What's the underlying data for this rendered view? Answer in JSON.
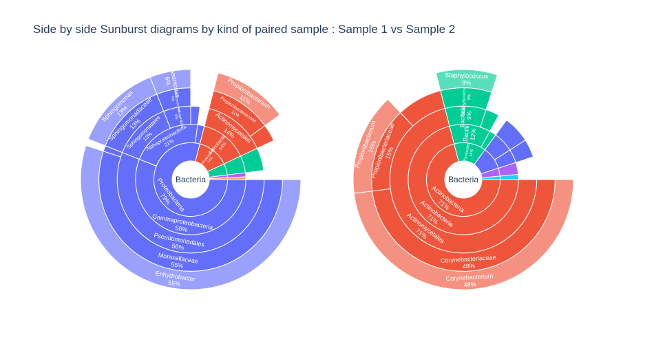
{
  "chart_data": {
    "title": "Side by side Sunburst diagrams by kind of paired sample : Sample 1 vs Sample 2",
    "type": "sunburst",
    "colors": {
      "Proteobacteria": "#636efa",
      "Actinobacteria": "#ef553b",
      "Firmicutes": "#00cc96",
      "Bacteroidetes": "#ab63fa",
      "Cyanobacteria": "#ffa15a",
      "Other": "#19d3f3"
    },
    "charts": [
      {
        "name": "Sample 1",
        "root": "Bacteria",
        "start_angle_deg": 0,
        "nodes": [
          {
            "label": "Proteobacteria",
            "value": 79,
            "percent": "79%",
            "phylum": "Proteobacteria",
            "children": [
              {
                "label": "Gammaproteobacteria",
                "value": 56,
                "percent": "56%",
                "phylum": "Proteobacteria",
                "children": [
                  {
                    "label": "Pseudomonadales",
                    "value": 56,
                    "percent": "56%",
                    "phylum": "Proteobacteria",
                    "children": [
                      {
                        "label": "Moraxellaceae",
                        "value": 55,
                        "percent": "55%",
                        "phylum": "Proteobacteria",
                        "children": [
                          {
                            "label": "Enhydrobacter",
                            "value": 55,
                            "percent": "55%",
                            "phylum": "Proteobacteria"
                          }
                        ]
                      },
                      {
                        "label": "",
                        "value": 1,
                        "phylum": "Proteobacteria"
                      }
                    ]
                  }
                ]
              },
              {
                "label": "Alphaproteobacteria",
                "value": 21,
                "percent": "21%",
                "phylum": "Proteobacteria",
                "children": [
                  {
                    "label": "Sphingomonadales",
                    "value": 13,
                    "percent": "13%",
                    "phylum": "Proteobacteria",
                    "children": [
                      {
                        "label": "Sphingomonadaceae",
                        "value": 13,
                        "percent": "13%",
                        "phylum": "Proteobacteria",
                        "children": [
                          {
                            "label": "Sphingomonas",
                            "value": 13,
                            "percent": "13%",
                            "phylum": "Proteobacteria"
                          }
                        ]
                      }
                    ]
                  },
                  {
                    "label": "Rhodospirillales",
                    "value": 6,
                    "percent": "6%",
                    "phylum": "Proteobacteria",
                    "children": [
                      {
                        "label": "Acetobacteraceae",
                        "value": 6,
                        "percent": "6%",
                        "phylum": "Proteobacteria",
                        "children": [
                          {
                            "label": "Roseomonas",
                            "value": 6,
                            "percent": "6%",
                            "phylum": "Proteobacteria"
                          }
                        ]
                      }
                    ]
                  },
                  {
                    "label": "",
                    "value": 2,
                    "phylum": "Proteobacteria"
                  }
                ]
              },
              {
                "label": "",
                "value": 2,
                "phylum": "Proteobacteria"
              }
            ]
          },
          {
            "label": "Actinobacteria",
            "value": 14,
            "percent": "14%",
            "phylum": "Actinobacteria",
            "children": [
              {
                "label": "Actinobacteria",
                "value": 14,
                "percent": "14%",
                "phylum": "Actinobacteria",
                "children": [
                  {
                    "label": "Actinomycetales",
                    "value": 14,
                    "percent": "14%",
                    "phylum": "Actinobacteria",
                    "children": [
                      {
                        "label": "Propionibacteriaceae",
                        "value": 11,
                        "percent": "11%",
                        "phylum": "Actinobacteria",
                        "children": [
                          {
                            "label": "Propionibacterium",
                            "value": 11,
                            "percent": "11%",
                            "phylum": "Actinobacteria"
                          }
                        ]
                      },
                      {
                        "label": "",
                        "value": 3,
                        "phylum": "Actinobacteria"
                      }
                    ]
                  }
                ]
              }
            ]
          },
          {
            "label": "",
            "value": 5,
            "phylum": "Firmicutes",
            "children": [
              {
                "label": "",
                "value": 5,
                "phylum": "Firmicutes",
                "children": [
                  {
                    "label": "",
                    "value": 5,
                    "phylum": "Firmicutes"
                  }
                ]
              }
            ]
          },
          {
            "label": "",
            "value": 1.2,
            "phylum": "Bacteroidetes",
            "children": [
              {
                "label": "",
                "value": 1.2,
                "phylum": "Bacteroidetes"
              }
            ]
          },
          {
            "label": "",
            "value": 0.8,
            "phylum": "Cyanobacteria",
            "children": [
              {
                "label": "",
                "value": 0.8,
                "phylum": "Cyanobacteria"
              }
            ]
          }
        ]
      },
      {
        "name": "Sample 2",
        "root": "Bacteria",
        "start_angle_deg": 0,
        "nodes": [
          {
            "label": "Actinobacteria",
            "value": 71,
            "percent": "71%",
            "phylum": "Actinobacteria",
            "children": [
              {
                "label": "Actinobacteria",
                "value": 71,
                "percent": "71%",
                "phylum": "Actinobacteria",
                "children": [
                  {
                    "label": "Actinomycetales",
                    "value": 71,
                    "percent": "71%",
                    "phylum": "Actinobacteria",
                    "children": [
                      {
                        "label": "Corynebacteriaceae",
                        "value": 48,
                        "percent": "48%",
                        "phylum": "Actinobacteria",
                        "children": [
                          {
                            "label": "Corynebacterium",
                            "value": 48,
                            "percent": "48%",
                            "phylum": "Actinobacteria"
                          }
                        ]
                      },
                      {
                        "label": "Propionibacteriaceae",
                        "value": 15,
                        "percent": "15%",
                        "phylum": "Actinobacteria",
                        "children": [
                          {
                            "label": "Propionibacterium",
                            "value": 15,
                            "percent": "15%",
                            "phylum": "Actinobacteria"
                          }
                        ]
                      },
                      {
                        "label": "",
                        "value": 8,
                        "phylum": "Actinobacteria"
                      }
                    ]
                  }
                ]
              }
            ]
          },
          {
            "label": "Firmicutes",
            "value": 14,
            "percent": "14%",
            "phylum": "Firmicutes",
            "children": [
              {
                "label": "Bacilli",
                "value": 12,
                "percent": "12%",
                "phylum": "Firmicutes",
                "children": [
                  {
                    "label": "Bacillales",
                    "value": 9,
                    "percent": "9%",
                    "phylum": "Firmicutes",
                    "children": [
                      {
                        "label": "Staphylococcaceae",
                        "value": 9,
                        "percent": "9%",
                        "phylum": "Firmicutes",
                        "children": [
                          {
                            "label": "Staphylococcus",
                            "value": 9,
                            "percent": "9%",
                            "phylum": "Firmicutes"
                          }
                        ]
                      }
                    ]
                  },
                  {
                    "label": "",
                    "value": 3,
                    "phylum": "Firmicutes"
                  }
                ]
              },
              {
                "label": "",
                "value": 2,
                "phylum": "Firmicutes"
              }
            ]
          },
          {
            "label": "",
            "value": 10,
            "phylum": "Proteobacteria",
            "children": [
              {
                "label": "",
                "value": 6,
                "phylum": "Proteobacteria",
                "children": [
                  {
                    "label": "",
                    "value": 6,
                    "phylum": "Proteobacteria"
                  }
                ]
              },
              {
                "label": "",
                "value": 4,
                "phylum": "Proteobacteria",
                "children": [
                  {
                    "label": "",
                    "value": 4,
                    "phylum": "Proteobacteria"
                  }
                ]
              }
            ]
          },
          {
            "label": "",
            "value": 3.5,
            "phylum": "Bacteroidetes",
            "children": [
              {
                "label": "",
                "value": 3.5,
                "phylum": "Bacteroidetes"
              }
            ]
          },
          {
            "label": "",
            "value": 1.5,
            "phylum": "Other",
            "children": [
              {
                "label": "",
                "value": 1.5,
                "phylum": "Other"
              }
            ]
          }
        ]
      }
    ]
  }
}
